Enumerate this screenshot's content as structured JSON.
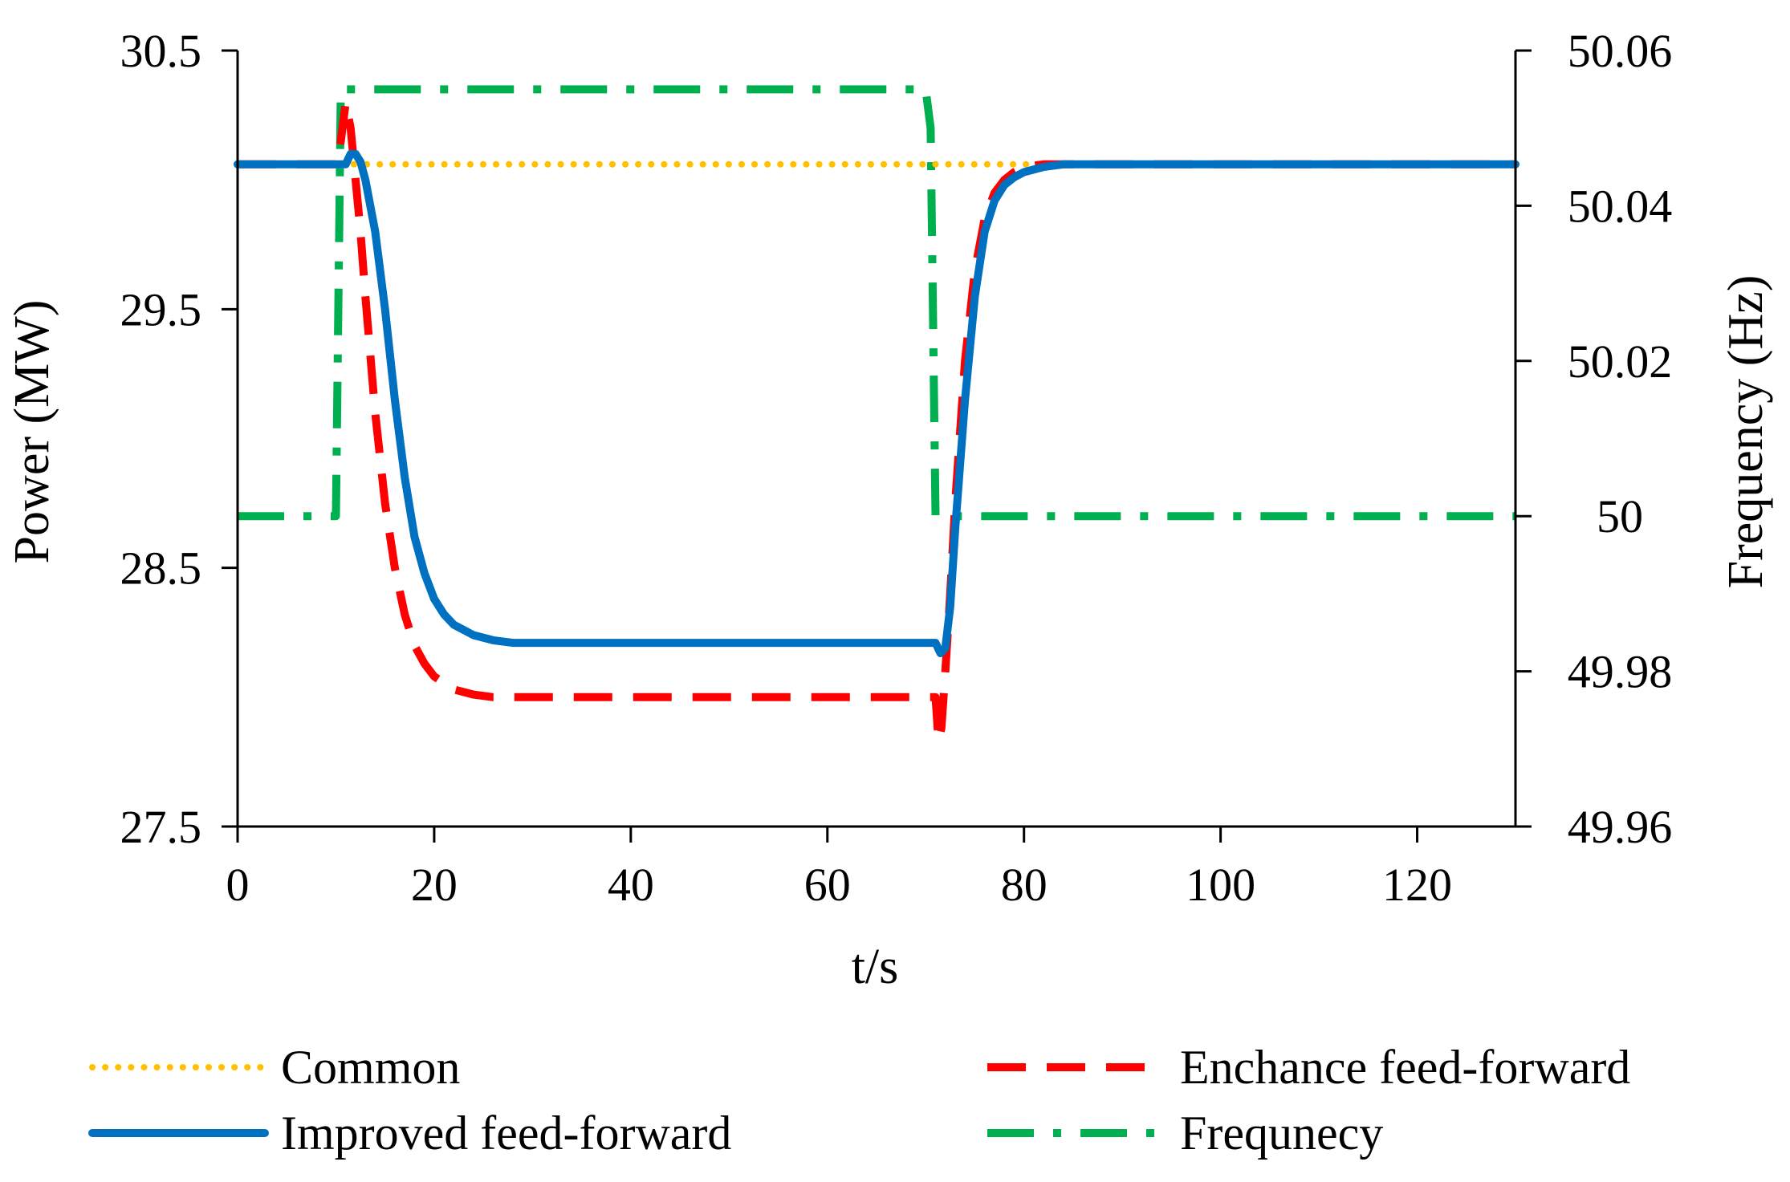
{
  "chart_data": {
    "type": "line",
    "title": "",
    "xlabel": "t/s",
    "ylabel": "Power (MW)",
    "y2label": "Frequency (Hz)",
    "xlim": [
      0,
      130
    ],
    "ylim": [
      27.5,
      30.5
    ],
    "y2lim": [
      49.96,
      50.06
    ],
    "x_ticks": [
      0,
      20,
      40,
      60,
      80,
      100,
      120
    ],
    "y_ticks": [
      27.5,
      28.5,
      29.5,
      30.5
    ],
    "y2_ticks": [
      49.96,
      49.98,
      50,
      50.02,
      50.04,
      50.06
    ],
    "x_tick_labels": [
      "0",
      "20",
      "40",
      "60",
      "80",
      "100",
      "120"
    ],
    "y_tick_labels": [
      "27.5",
      "28.5",
      "29.5",
      "30.5"
    ],
    "y2_tick_labels": [
      "49.96",
      "49.98",
      "50",
      "50.02",
      "50.04",
      "50.06"
    ],
    "grid": false,
    "legend_position": "bottom",
    "series": [
      {
        "name": "Common",
        "axis": "left",
        "color": "#FFC000",
        "style": "dotted",
        "x": [
          0,
          130
        ],
        "y": [
          30.06,
          30.06
        ]
      },
      {
        "name": "Enchance feed-forward",
        "axis": "left",
        "color": "#FF0000",
        "style": "dashed",
        "x": [
          0,
          10,
          10.5,
          11,
          11.5,
          12,
          12.5,
          13,
          14,
          15,
          16,
          17,
          18,
          19,
          20,
          22,
          24,
          26,
          30,
          40,
          50,
          60,
          70,
          70.5,
          71,
          71.3,
          71.6,
          72,
          72.5,
          73,
          74,
          75,
          76,
          77,
          78,
          79,
          80,
          82,
          84,
          86,
          90,
          100,
          130
        ],
        "y": [
          30.06,
          30.06,
          30.15,
          30.3,
          30.2,
          30.0,
          29.8,
          29.55,
          29.1,
          28.75,
          28.5,
          28.32,
          28.2,
          28.13,
          28.08,
          28.03,
          28.01,
          28.0,
          28.0,
          28.0,
          28.0,
          28.0,
          28.0,
          28.0,
          28.0,
          27.83,
          27.88,
          28.1,
          28.4,
          28.75,
          29.3,
          29.65,
          29.85,
          29.95,
          30.0,
          30.03,
          30.05,
          30.06,
          30.06,
          30.06,
          30.06,
          30.06,
          30.06
        ]
      },
      {
        "name": "Improved feed-forward",
        "axis": "left",
        "color": "#0070C0",
        "style": "solid",
        "x": [
          0,
          10,
          11,
          11.5,
          12,
          12.5,
          13,
          14,
          15,
          16,
          17,
          18,
          19,
          20,
          21,
          22,
          24,
          26,
          28,
          30,
          40,
          50,
          60,
          70,
          71,
          71.5,
          72,
          72.5,
          73,
          74,
          75,
          76,
          77,
          78,
          79,
          80,
          82,
          84,
          86,
          88,
          90,
          100,
          130
        ],
        "y": [
          30.06,
          30.06,
          30.06,
          30.1,
          30.1,
          30.07,
          30.0,
          29.8,
          29.5,
          29.15,
          28.85,
          28.62,
          28.48,
          28.38,
          28.32,
          28.28,
          28.24,
          28.22,
          28.21,
          28.21,
          28.21,
          28.21,
          28.21,
          28.21,
          28.21,
          28.17,
          28.19,
          28.35,
          28.65,
          29.15,
          29.55,
          29.8,
          29.92,
          29.98,
          30.01,
          30.03,
          30.05,
          30.06,
          30.06,
          30.06,
          30.06,
          30.06,
          30.06
        ]
      },
      {
        "name": "Frequnecy",
        "axis": "right",
        "color": "#00B050",
        "style": "dashdot",
        "x": [
          0,
          9.5,
          10,
          10.5,
          11,
          69.5,
          70,
          70.5,
          71,
          71.5,
          130
        ],
        "y": [
          50.0,
          50.0,
          50.0,
          50.055,
          50.055,
          50.055,
          50.055,
          50.05,
          50.0,
          50.0,
          50.0
        ]
      }
    ]
  }
}
